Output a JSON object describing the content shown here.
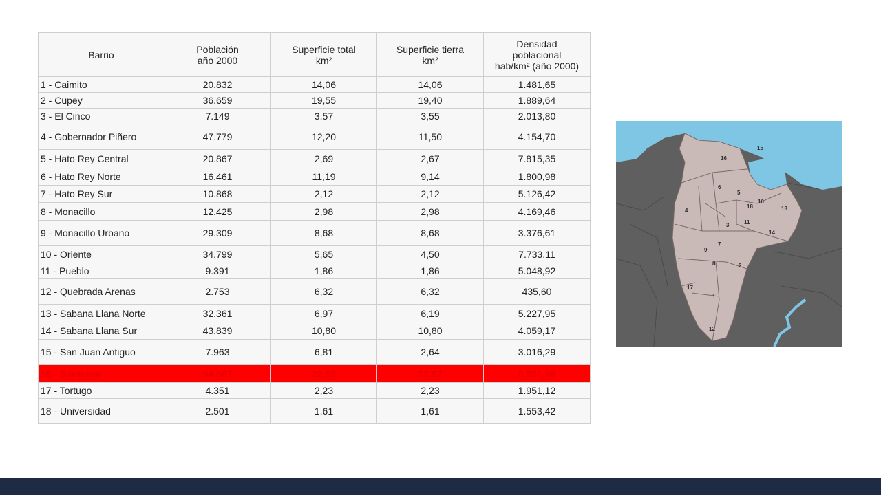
{
  "table": {
    "headers": [
      {
        "lines": [
          "Barrio"
        ]
      },
      {
        "lines": [
          "Población",
          "año 2000"
        ]
      },
      {
        "lines": [
          "Superficie total",
          "km²"
        ]
      },
      {
        "lines": [
          "Superficie tierra",
          "km²"
        ]
      },
      {
        "lines": [
          "Densidad",
          "poblacional",
          "hab/km² (año 2000)"
        ]
      }
    ],
    "rows": [
      {
        "barrio": "1 - Caimito",
        "poblacion": "20.832",
        "sup_total": "14,06",
        "sup_tierra": "14,06",
        "densidad": "1.481,65"
      },
      {
        "barrio": "2 - Cupey",
        "poblacion": "36.659",
        "sup_total": "19,55",
        "sup_tierra": "19,40",
        "densidad": "1.889,64"
      },
      {
        "barrio": "3 - El Cinco",
        "poblacion": "7.149",
        "sup_total": "3,57",
        "sup_tierra": "3,55",
        "densidad": "2.013,80"
      },
      {
        "barrio": "4 - Gobernador Piñero",
        "poblacion": "47.779",
        "sup_total": "12,20",
        "sup_tierra": "11,50",
        "densidad": "4.154,70"
      },
      {
        "barrio": "5 - Hato Rey Central",
        "poblacion": "20.867",
        "sup_total": "2,69",
        "sup_tierra": "2,67",
        "densidad": "7.815,35"
      },
      {
        "barrio": "6 - Hato Rey Norte",
        "poblacion": "16.461",
        "sup_total": "11,19",
        "sup_tierra": "9,14",
        "densidad": "1.800,98"
      },
      {
        "barrio": "7 - Hato Rey Sur",
        "poblacion": "10.868",
        "sup_total": "2,12",
        "sup_tierra": "2,12",
        "densidad": "5.126,42"
      },
      {
        "barrio": "8 - Monacillo",
        "poblacion": "12.425",
        "sup_total": "2,98",
        "sup_tierra": "2,98",
        "densidad": "4.169,46"
      },
      {
        "barrio": "9 - Monacillo Urbano",
        "poblacion": "29.309",
        "sup_total": "8,68",
        "sup_tierra": "8,68",
        "densidad": "3.376,61"
      },
      {
        "barrio": "10 - Oriente",
        "poblacion": "34.799",
        "sup_total": "5,65",
        "sup_tierra": "4,50",
        "densidad": "7.733,11"
      },
      {
        "barrio": "11 - Pueblo",
        "poblacion": "9.391",
        "sup_total": "1,86",
        "sup_tierra": "1,86",
        "densidad": "5.048,92"
      },
      {
        "barrio": "12 - Quebrada Arenas",
        "poblacion": "2.753",
        "sup_total": "6,32",
        "sup_tierra": "6,32",
        "densidad": "435,60"
      },
      {
        "barrio": "13 - Sabana Llana Norte",
        "poblacion": "32.361",
        "sup_total": "6,97",
        "sup_tierra": "6,19",
        "densidad": "5.227,95"
      },
      {
        "barrio": "14 - Sabana Llana Sur",
        "poblacion": "43.839",
        "sup_total": "10,80",
        "sup_tierra": "10,80",
        "densidad": "4.059,17"
      },
      {
        "barrio": "15 - San Juan Antiguo",
        "poblacion": "7.963",
        "sup_total": "6,81",
        "sup_tierra": "2,64",
        "densidad": "3.016,29"
      },
      {
        "barrio": "16 - Santurce",
        "poblacion": "94.067",
        "sup_total": "22,53",
        "sup_tierra": "13,57",
        "densidad": "6.931,98",
        "highlight": true
      },
      {
        "barrio": "17 - Tortugo",
        "poblacion": "4.351",
        "sup_total": "2,23",
        "sup_tierra": "2,23",
        "densidad": "1.951,12"
      },
      {
        "barrio": "18 - Universidad",
        "poblacion": "2.501",
        "sup_total": "1,61",
        "sup_tierra": "1,61",
        "densidad": "1.553,42"
      }
    ]
  },
  "map": {
    "labels": [
      "16",
      "15",
      "6",
      "5",
      "4",
      "18",
      "10",
      "13",
      "3",
      "11",
      "14",
      "7",
      "9",
      "8",
      "2",
      "17",
      "1",
      "12"
    ],
    "colors": {
      "land": "#c9bab8",
      "water": "#7fc6e4",
      "outside": "#5f5f5f",
      "border": "#7a6a68"
    }
  },
  "colors": {
    "highlight_row": "#ff0000",
    "highlight_text": "#e60000",
    "footer": "#1f2a44"
  }
}
